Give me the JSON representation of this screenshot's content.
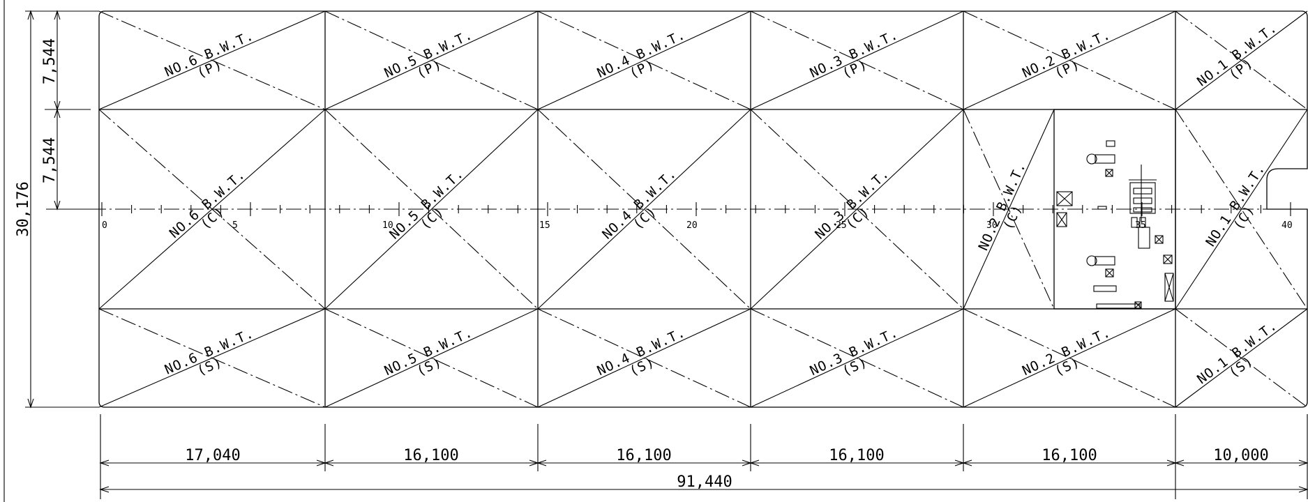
{
  "tanks": [
    {
      "bay": 0,
      "row": "P",
      "name": "NO.6 B.W.T.",
      "side": "(P)"
    },
    {
      "bay": 0,
      "row": "C",
      "name": "NO.6 B.W.T.",
      "side": "(C)"
    },
    {
      "bay": 0,
      "row": "S",
      "name": "NO.6 B.W.T.",
      "side": "(S)"
    },
    {
      "bay": 1,
      "row": "P",
      "name": "NO.5 B.W.T.",
      "side": "(P)"
    },
    {
      "bay": 1,
      "row": "C",
      "name": "NO.5 B.W.T.",
      "side": "(C)"
    },
    {
      "bay": 1,
      "row": "S",
      "name": "NO.5 B.W.T.",
      "side": "(S)"
    },
    {
      "bay": 2,
      "row": "P",
      "name": "NO.4 B.W.T.",
      "side": "(P)"
    },
    {
      "bay": 2,
      "row": "C",
      "name": "NO.4 B.W.T.",
      "side": "(C)"
    },
    {
      "bay": 2,
      "row": "S",
      "name": "NO.4 B.W.T.",
      "side": "(S)"
    },
    {
      "bay": 3,
      "row": "P",
      "name": "NO.3 B.W.T.",
      "side": "(P)"
    },
    {
      "bay": 3,
      "row": "C",
      "name": "NO.3 B.W.T.",
      "side": "(C)"
    },
    {
      "bay": 3,
      "row": "S",
      "name": "NO.3 B.W.T.",
      "side": "(S)"
    },
    {
      "bay": 4,
      "row": "P",
      "name": "NO.2 B.W.T.",
      "side": "(P)"
    },
    {
      "bay": 4,
      "row": "C",
      "name": "NO.2 B.W.T.",
      "side": "(C)"
    },
    {
      "bay": 4,
      "row": "S",
      "name": "NO.2 B.W.T.",
      "side": "(S)"
    },
    {
      "bay": 5,
      "row": "P",
      "name": "NO.1 B.W.T.",
      "side": "(P)"
    },
    {
      "bay": 5,
      "row": "C",
      "name": "NO.1 B.W.T.",
      "side": "(C)"
    },
    {
      "bay": 5,
      "row": "S",
      "name": "NO.1 B.W.T.",
      "side": "(S)"
    }
  ],
  "frame_labels": [
    "0",
    "5",
    "10",
    "15",
    "20",
    "25",
    "30",
    "35",
    "40"
  ],
  "dimensions": {
    "bays": [
      "17,040",
      "16,100",
      "16,100",
      "16,100",
      "16,100",
      "10,000"
    ],
    "overall_length": "91,440",
    "overall_breadth": "30,176",
    "side_tank_width": "7,544",
    "center_half_width": "7,544"
  }
}
